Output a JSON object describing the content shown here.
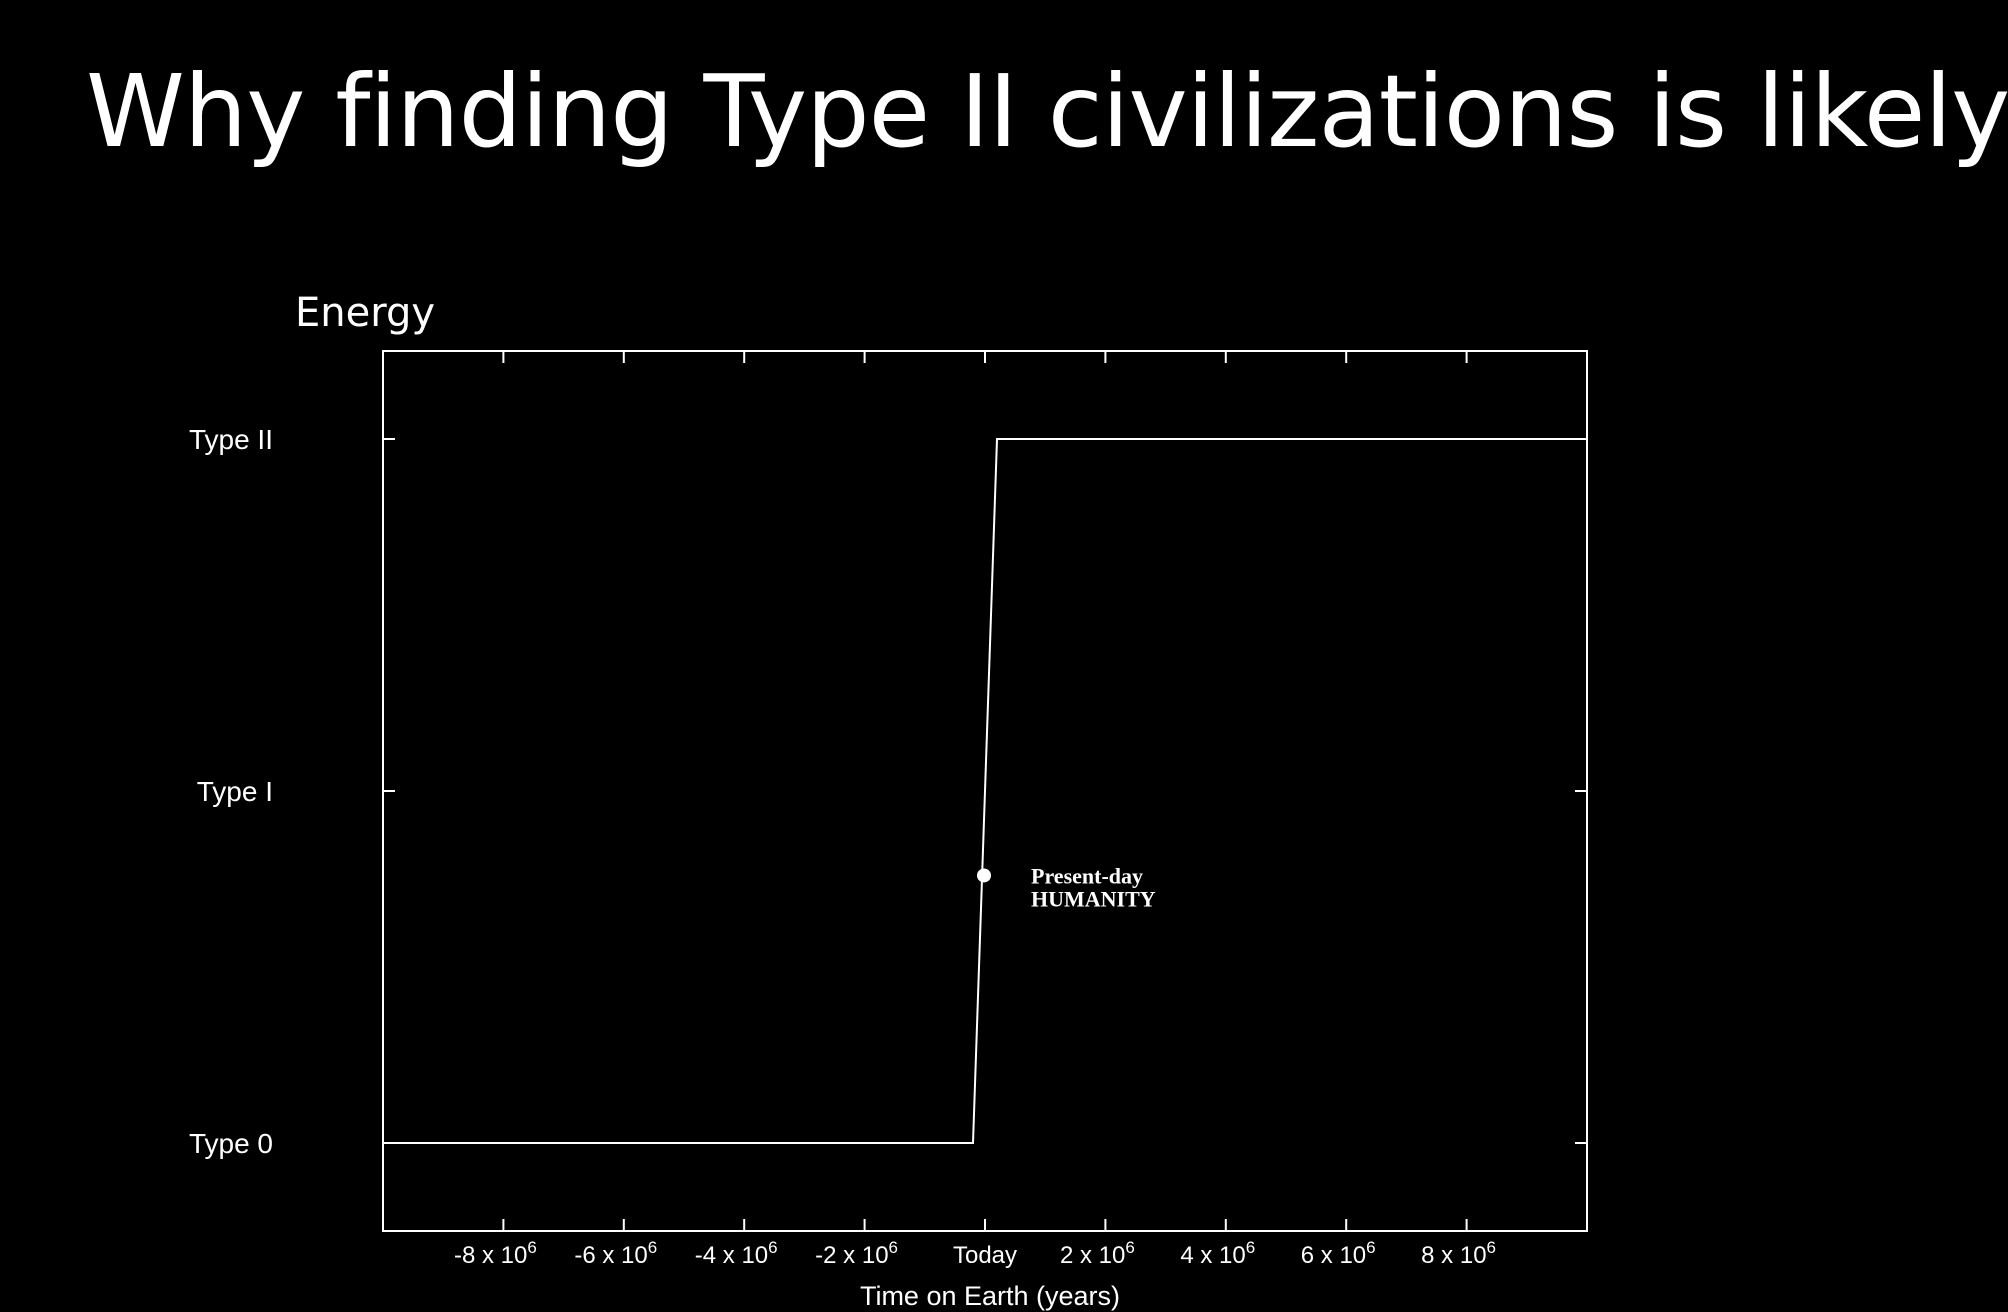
{
  "slide": {
    "title": "Why finding Type II civilizations is likely"
  },
  "colors": {
    "background": "#000000",
    "foreground": "#ffffff"
  },
  "chart_data": {
    "type": "line",
    "title": "",
    "ylabel": "Energy",
    "xlabel": "Time on Earth (years)",
    "xlim": [
      -10000000,
      10000000
    ],
    "ylim": [
      -0.25,
      2.25
    ],
    "x_ticks": [
      {
        "value": -8000000,
        "base": "-8 x 10",
        "exp": "6"
      },
      {
        "value": -6000000,
        "base": "-6 x 10",
        "exp": "6"
      },
      {
        "value": -4000000,
        "base": "-4 x 10",
        "exp": "6"
      },
      {
        "value": -2000000,
        "base": "-2 x 10",
        "exp": "6"
      },
      {
        "value": 0,
        "base": "Today",
        "exp": ""
      },
      {
        "value": 2000000,
        "base": "2 x 10",
        "exp": "6"
      },
      {
        "value": 4000000,
        "base": "4 x 10",
        "exp": "6"
      },
      {
        "value": 6000000,
        "base": "6 x 10",
        "exp": "6"
      },
      {
        "value": 8000000,
        "base": "8 x 10",
        "exp": "6"
      }
    ],
    "y_ticks": [
      {
        "value": 0,
        "label": "Type 0"
      },
      {
        "value": 1,
        "label": "Type I"
      },
      {
        "value": 2,
        "label": "Type II"
      }
    ],
    "series": [
      {
        "x": [
          -10000000,
          -200000,
          200000,
          10000000
        ],
        "y": [
          0,
          0,
          2,
          2
        ]
      }
    ],
    "annotations": [
      {
        "x": 0,
        "y": 0.76,
        "lines": [
          "Present-day",
          "HUMANITY"
        ]
      }
    ],
    "grid": false,
    "legend": "none"
  }
}
